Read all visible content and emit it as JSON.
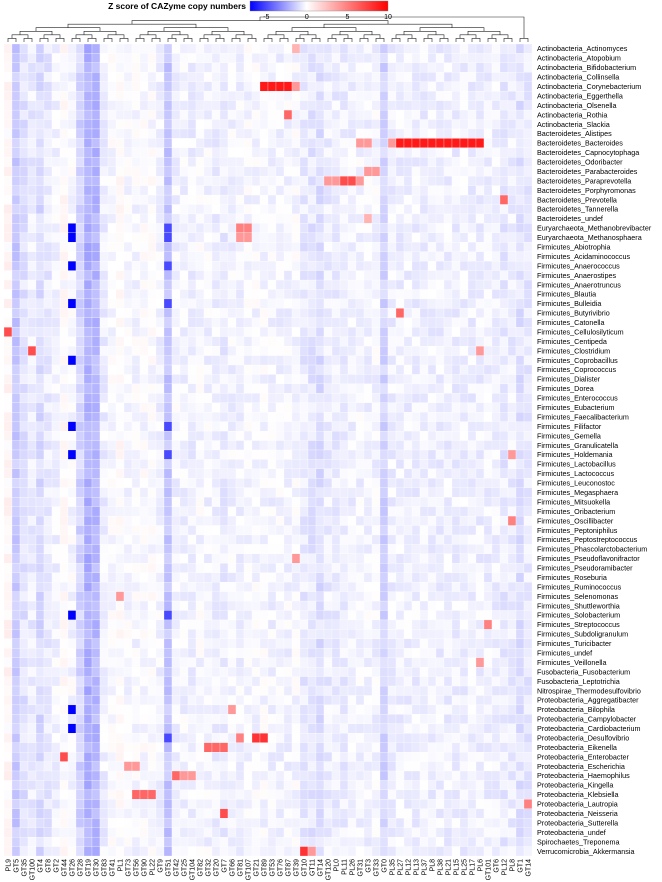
{
  "chart_data": {
    "type": "heatmap",
    "title": "Z score of CAZyme copy numbers",
    "legend": {
      "title": "Z score of CAZyme copy numbers",
      "ticks": [
        "-5",
        "0",
        "5",
        "10"
      ],
      "tick_values": [
        -5,
        0,
        5,
        10
      ],
      "range": [
        -7,
        10
      ],
      "colors": [
        "#0000ff",
        "#ffffff",
        "#ff0000"
      ],
      "placement": "top-center"
    },
    "columns": [
      "PL9",
      "GT5",
      "GT35",
      "GT100",
      "GT4",
      "GT8",
      "GT2",
      "GT44",
      "GT26",
      "GT28",
      "GT19",
      "GT30",
      "GT83",
      "GT41",
      "PL1",
      "GT73",
      "GT56",
      "GT90",
      "PL22",
      "GT9",
      "GT51",
      "GT42",
      "GT25",
      "GT104",
      "GT82",
      "GT32",
      "GT20",
      "GT7",
      "GT66",
      "GT81",
      "GT107",
      "GT21",
      "GT89",
      "GT53",
      "GT76",
      "GT87",
      "GT39",
      "GT10",
      "GT11",
      "GT14",
      "GT120",
      "PL0",
      "PL11",
      "PL26",
      "GT31",
      "GT3",
      "GT33",
      "GT0",
      "PL35",
      "PL27",
      "PL12",
      "PL13",
      "PL37",
      "PL8",
      "PL38",
      "PL21",
      "PL15",
      "PL25",
      "PL17",
      "PL6",
      "GT101",
      "GT6",
      "PL12b",
      "PL8b",
      "GT1",
      "GT14b"
    ],
    "column_tick_labels": [
      "PL9",
      "GT5",
      "GT35",
      "GT100",
      "GT4",
      "GT8",
      "GT2",
      "GT44",
      "GT26",
      "GT28",
      "GT19",
      "GT30",
      "GT83",
      "GT41",
      "PL1",
      "GT73",
      "GT56",
      "GT90",
      "PL22",
      "GT9",
      "GT51",
      "GT42",
      "GT25",
      "GT104",
      "GT82",
      "GT32",
      "GT20",
      "GT7",
      "GT66",
      "GT81",
      "GT107",
      "GT21",
      "GT89",
      "GT53",
      "GT76",
      "GT87",
      "GT39",
      "GT10",
      "GT11",
      "GT14",
      "GT120",
      "PL0",
      "PL11",
      "PL26",
      "GT31",
      "GT3",
      "GT33",
      "GT0",
      "PL35",
      "PL27",
      "PL12",
      "PL13",
      "PL37",
      "PL8",
      "PL38",
      "PL21",
      "PL15",
      "PL25",
      "PL17",
      "PL6",
      "GT101",
      "GT6",
      "PL12",
      "PL8",
      "GT1",
      "GT14"
    ],
    "rows": [
      "Actinobacteria_Actinomyces",
      "Actinobacteria_Atopobium",
      "Actinobacteria_Bifidobacterium",
      "Actinobacteria_Collinsella",
      "Actinobacteria_Corynebacterium",
      "Actinobacteria_Eggerthella",
      "Actinobacteria_Olsenella",
      "Actinobacteria_Rothia",
      "Actinobacteria_Slackia",
      "Bacteroidetes_Alistipes",
      "Bacteroidetes_Bacteroides",
      "Bacteroidetes_Capnocytophaga",
      "Bacteroidetes_Odoribacter",
      "Bacteroidetes_Parabacteroides",
      "Bacteroidetes_Paraprevotella",
      "Bacteroidetes_Porphyromonas",
      "Bacteroidetes_Prevotella",
      "Bacteroidetes_Tannerella",
      "Bacteroidetes_undef",
      "Euryarchaeota_Methanobrevibacter",
      "Euryarchaeota_Methanosphaera",
      "Firmicutes_Abiotrophia",
      "Firmicutes_Acidaminococcus",
      "Firmicutes_Anaerococcus",
      "Firmicutes_Anaerostipes",
      "Firmicutes_Anaerotruncus",
      "Firmicutes_Blautia",
      "Firmicutes_Bulleidia",
      "Firmicutes_Butyrivibrio",
      "Firmicutes_Catonella",
      "Firmicutes_Cellulosilyticum",
      "Firmicutes_Centipeda",
      "Firmicutes_Clostridium",
      "Firmicutes_Coprobacillus",
      "Firmicutes_Coprococcus",
      "Firmicutes_Dialister",
      "Firmicutes_Dorea",
      "Firmicutes_Enterococcus",
      "Firmicutes_Eubacterium",
      "Firmicutes_Faecalibacterium",
      "Firmicutes_Filifactor",
      "Firmicutes_Gemella",
      "Firmicutes_Granulicatella",
      "Firmicutes_Holdemania",
      "Firmicutes_Lactobacillus",
      "Firmicutes_Lactococcus",
      "Firmicutes_Leuconostoc",
      "Firmicutes_Megasphaera",
      "Firmicutes_Mitsuokella",
      "Firmicutes_Oribacterium",
      "Firmicutes_Oscillibacter",
      "Firmicutes_Peptoniphilus",
      "Firmicutes_Peptostreptococcus",
      "Firmicutes_Phascolarctobacterium",
      "Firmicutes_Pseudoflavonifractor",
      "Firmicutes_Pseudoramibacter",
      "Firmicutes_Roseburia",
      "Firmicutes_Ruminococcus",
      "Firmicutes_Selenomonas",
      "Firmicutes_Shuttleworthia",
      "Firmicutes_Solobacterium",
      "Firmicutes_Streptococcus",
      "Firmicutes_Subdoligranulum",
      "Firmicutes_Turicibacter",
      "Firmicutes_undef",
      "Firmicutes_Veillonella",
      "Fusobacteria_Fusobacterium",
      "Fusobacteria_Leptotrichia",
      "Nitrospirae_Thermodesulfovibrio",
      "Proteobacteria_Aggregatibacter",
      "Proteobacteria_Bilophila",
      "Proteobacteria_Campylobacter",
      "Proteobacteria_Cardiobacterium",
      "Proteobacteria_Desulfovibrio",
      "Proteobacteria_Eikenella",
      "Proteobacteria_Enterobacter",
      "Proteobacteria_Escherichia",
      "Proteobacteria_Haemophilus",
      "Proteobacteria_Kingella",
      "Proteobacteria_Klebsiella",
      "Proteobacteria_Lautropia",
      "Proteobacteria_Neisseria",
      "Proteobacteria_Sutterella",
      "Proteobacteria_undef",
      "Spirochaetes_Treponema",
      "Verrucomicrobia_Akkermansia"
    ],
    "column_baseline": [
      0.3,
      -1.5,
      -0.8,
      -0.5,
      -1.0,
      -0.6,
      -0.3,
      0.1,
      -0.2,
      -1.2,
      -2.2,
      -2.0,
      -0.4,
      -0.1,
      0.1,
      -0.2,
      -0.2,
      -0.1,
      -0.1,
      -0.3,
      -1.6,
      -0.3,
      -0.3,
      -0.4,
      -0.2,
      -0.3,
      -0.4,
      -0.5,
      -0.3,
      -0.3,
      -0.2,
      -0.2,
      -0.2,
      -0.3,
      -0.3,
      -0.3,
      -0.2,
      -0.6,
      -0.7,
      -0.9,
      -0.5,
      -0.5,
      -0.5,
      -0.4,
      -0.3,
      -0.3,
      -0.3,
      -1.2,
      -0.4,
      -0.4,
      -0.4,
      -0.4,
      -0.4,
      -0.4,
      -0.4,
      -0.4,
      -0.4,
      -0.4,
      -0.4,
      -0.4,
      -0.4,
      -0.4,
      -0.6,
      -0.5,
      -0.8,
      -0.6
    ],
    "highlights": [
      {
        "row": "Actinobacteria_Corynebacterium",
        "cols": [
          "GT89",
          "GT53",
          "GT76",
          "GT87"
        ],
        "value": 9
      },
      {
        "row": "Actinobacteria_Corynebacterium",
        "cols": [
          "GT39"
        ],
        "value": 4
      },
      {
        "row": "Actinobacteria_Rothia",
        "cols": [
          "GT87"
        ],
        "value": 6
      },
      {
        "row": "Actinobacteria_Actinomyces",
        "cols": [
          "GT39"
        ],
        "value": 3
      },
      {
        "row": "Bacteroidetes_Bacteroides",
        "cols": [
          "PL27",
          "PL12",
          "PL13",
          "PL37",
          "PL8",
          "PL38",
          "PL21",
          "PL15",
          "PL25",
          "PL17",
          "PL6"
        ],
        "value": 9
      },
      {
        "row": "Bacteroidetes_Bacteroides",
        "cols": [
          "GT3",
          "GT31",
          "PL35"
        ],
        "value": 4
      },
      {
        "row": "Bacteroidetes_Paraprevotella",
        "cols": [
          "PL11",
          "PL26"
        ],
        "value": 7
      },
      {
        "row": "Bacteroidetes_Paraprevotella",
        "cols": [
          "GT120",
          "PL0",
          "GT31"
        ],
        "value": 4
      },
      {
        "row": "Bacteroidetes_Parabacteroides",
        "cols": [
          "GT3",
          "GT33"
        ],
        "value": 4
      },
      {
        "row": "Bacteroidetes_Prevotella",
        "cols": [
          "PL12b"
        ],
        "value": 6
      },
      {
        "row": "Bacteroidetes_undef",
        "cols": [
          "GT3"
        ],
        "value": 3
      },
      {
        "row": "Euryarchaeota_Methanobrevibacter",
        "cols": [
          "GT81",
          "GT107"
        ],
        "value": 5
      },
      {
        "row": "Euryarchaeota_Methanosphaera",
        "cols": [
          "GT81",
          "GT107"
        ],
        "value": 4
      },
      {
        "row": "Firmicutes_Cellulosilyticum",
        "cols": [
          "PL9"
        ],
        "value": 7
      },
      {
        "row": "Firmicutes_Clostridium",
        "cols": [
          "GT100"
        ],
        "value": 7
      },
      {
        "row": "Firmicutes_Butyrivibrio",
        "cols": [
          "PL27"
        ],
        "value": 6
      },
      {
        "row": "Firmicutes_Clostridium",
        "cols": [
          "PL6"
        ],
        "value": 4
      },
      {
        "row": "Firmicutes_Streptococcus",
        "cols": [
          "GT101"
        ],
        "value": 5
      },
      {
        "row": "Firmicutes_Holdemania",
        "cols": [
          "PL8b"
        ],
        "value": 4
      },
      {
        "row": "Firmicutes_Oscillibacter",
        "cols": [
          "PL8b"
        ],
        "value": 5
      },
      {
        "row": "Firmicutes_Veillonella",
        "cols": [
          "PL6"
        ],
        "value": 4
      },
      {
        "row": "Firmicutes_Selenomonas",
        "cols": [
          "PL1"
        ],
        "value": 4
      },
      {
        "row": "Firmicutes_Pseudoflavonifractor",
        "cols": [
          "GT39"
        ],
        "value": 4
      },
      {
        "row": "Proteobacteria_Enterobacter",
        "cols": [
          "GT44"
        ],
        "value": 7
      },
      {
        "row": "Proteobacteria_Eikenella",
        "cols": [
          "GT32",
          "GT20",
          "GT7"
        ],
        "value": 6
      },
      {
        "row": "Proteobacteria_Desulfovibrio",
        "cols": [
          "GT21",
          "GT89"
        ],
        "value": 8
      },
      {
        "row": "Proteobacteria_Desulfovibrio",
        "cols": [
          "GT81"
        ],
        "value": 5
      },
      {
        "row": "Proteobacteria_Klebsiella",
        "cols": [
          "GT56",
          "GT90",
          "PL22"
        ],
        "value": 6
      },
      {
        "row": "Proteobacteria_Escherichia",
        "cols": [
          "GT73",
          "GT56"
        ],
        "value": 4
      },
      {
        "row": "Proteobacteria_Haemophilus",
        "cols": [
          "GT42"
        ],
        "value": 6
      },
      {
        "row": "Proteobacteria_Haemophilus",
        "cols": [
          "GT25",
          "GT104"
        ],
        "value": 4
      },
      {
        "row": "Proteobacteria_Neisseria",
        "cols": [
          "GT7"
        ],
        "value": 7
      },
      {
        "row": "Proteobacteria_Lautropia",
        "cols": [
          "GT14b"
        ],
        "value": 5
      },
      {
        "row": "Proteobacteria_Bilophila",
        "cols": [
          "GT66"
        ],
        "value": 4
      },
      {
        "row": "Verrucomicrobia_Akkermansia",
        "cols": [
          "GT10"
        ],
        "value": 8
      },
      {
        "row": "Verrucomicrobia_Akkermansia",
        "cols": [
          "GT11"
        ],
        "value": 4
      }
    ],
    "strong_negative": [
      {
        "rows": [
          "Euryarchaeota_Methanobrevibacter",
          "Euryarchaeota_Methanosphaera",
          "Firmicutes_Anaerococcus",
          "Firmicutes_Bulleidia",
          "Firmicutes_Coprobacillus",
          "Firmicutes_Filifactor",
          "Firmicutes_Holdemania",
          "Firmicutes_Solobacterium",
          "Proteobacteria_Bilophila",
          "Proteobacteria_Cardiobacterium"
        ],
        "cols": [
          "GT26"
        ],
        "value": -7
      },
      {
        "rows": [
          "Euryarchaeota_Methanobrevibacter",
          "Euryarchaeota_Methanosphaera",
          "Firmicutes_Anaerococcus",
          "Firmicutes_Bulleidia",
          "Firmicutes_Filifactor",
          "Firmicutes_Holdemania",
          "Firmicutes_Solobacterium",
          "Proteobacteria_Desulfovibrio"
        ],
        "cols": [
          "GT51"
        ],
        "value": -5
      }
    ]
  }
}
